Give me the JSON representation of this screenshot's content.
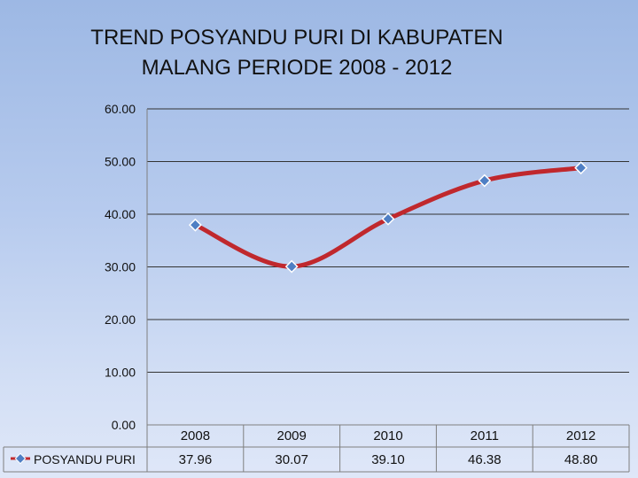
{
  "title_lines": [
    "TREND POSYANDU PURI DI KABUPATEN",
    "MALANG PERIODE 2008 - 2012"
  ],
  "colors": {
    "line": "#c0282d",
    "marker": "#4f7fc4",
    "marker_outline": "#ffffff",
    "axis": "#7f7f7f",
    "grid": "#333333"
  },
  "chart_data": {
    "type": "line",
    "title": "TREND POSYANDU PURI DI KABUPATEN MALANG PERIODE 2008 - 2012",
    "categories": [
      "2008",
      "2009",
      "2010",
      "2011",
      "2012"
    ],
    "series": [
      {
        "name": "POSYANDU PURI",
        "values": [
          37.96,
          30.07,
          39.1,
          46.38,
          48.8
        ],
        "labels": [
          "37.96",
          "30.07",
          "39.10",
          "46.38",
          "48.80"
        ]
      }
    ],
    "y_ticks": [
      "0.00",
      "10.00",
      "20.00",
      "30.00",
      "40.00",
      "50.00",
      "60.00"
    ],
    "ylim": [
      0,
      60
    ],
    "grid": true,
    "smooth": true,
    "legend": "data-table-left"
  }
}
